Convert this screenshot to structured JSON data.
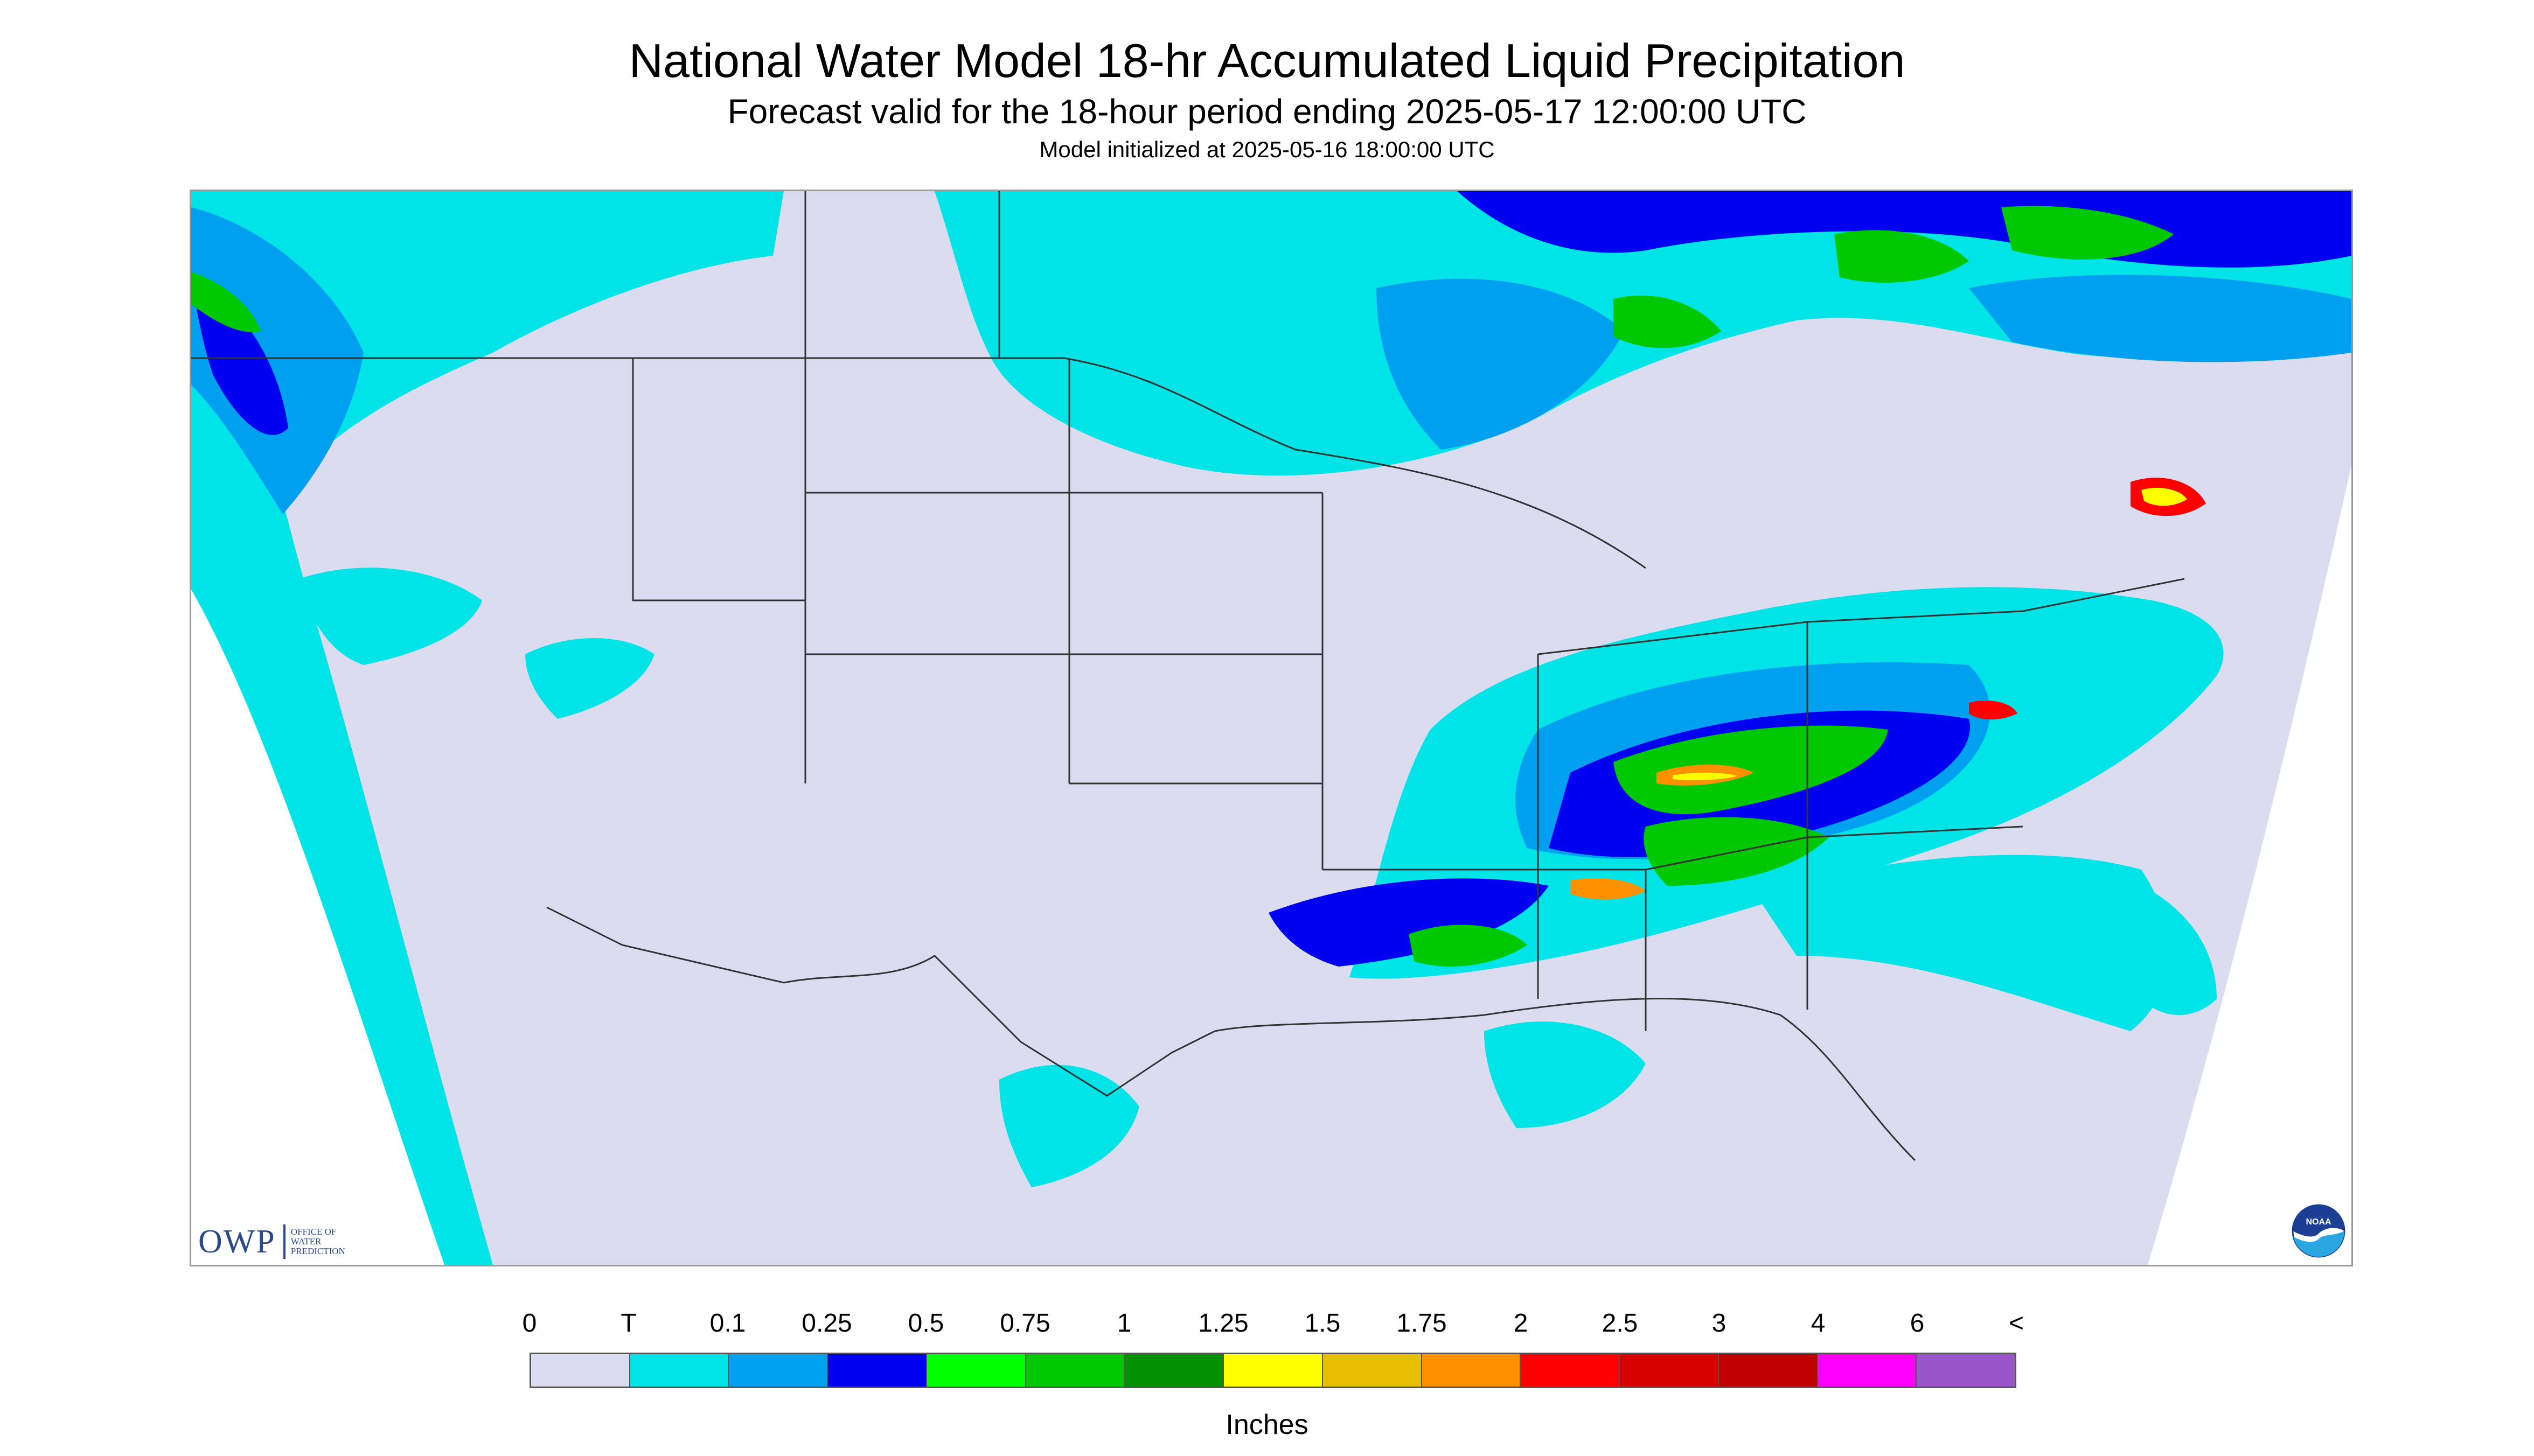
{
  "header": {
    "title": "National Water Model 18-hr Accumulated Liquid Precipitation",
    "subtitle": "Forecast valid for the 18-hour period ending 2025-05-17 12:00:00 UTC",
    "init_line": "Model initialized at 2025-05-16 18:00:00 UTC"
  },
  "map": {
    "region": "CONUS",
    "background_color": "#dcdcf0",
    "no_data_color": "#ffffff"
  },
  "logos": {
    "owp_text": "OWP",
    "owp_subtext": "OFFICE OF\nWATER\nPREDICTION",
    "noaa_text": "NOAA"
  },
  "legend": {
    "ticks": [
      "0",
      "T",
      "0.1",
      "0.25",
      "0.5",
      "0.75",
      "1",
      "1.25",
      "1.5",
      "1.75",
      "2",
      "2.5",
      "3",
      "4",
      "6",
      "<"
    ],
    "colors": [
      "#dcdcf0",
      "#00e4e8",
      "#00a0f0",
      "#0000f0",
      "#00ff00",
      "#00c800",
      "#009000",
      "#ffff00",
      "#e6c000",
      "#ff9000",
      "#ff0000",
      "#d60000",
      "#c00000",
      "#ff00ff",
      "#9955c9"
    ],
    "units": "Inches"
  }
}
